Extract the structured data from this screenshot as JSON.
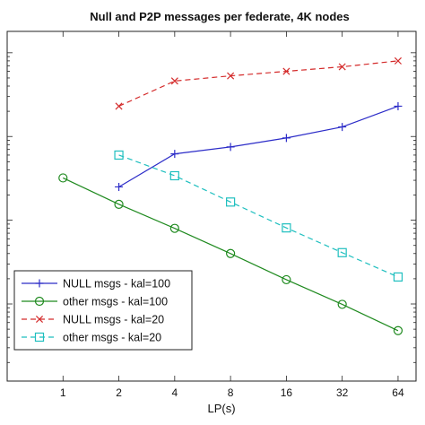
{
  "chart_data": {
    "type": "line",
    "title": "Null and P2P messages per federate, 4K nodes",
    "xlabel": "LP(s)",
    "ylabel": "",
    "x_scale": "log2",
    "y_scale": "log",
    "x": [
      1,
      2,
      4,
      8,
      16,
      32,
      64
    ],
    "x_tick_labels": [
      "1",
      "2",
      "4",
      "8",
      "16",
      "32",
      "64"
    ],
    "xlim": [
      0.5,
      80
    ],
    "ylim": [
      120,
      1800000
    ],
    "grid": false,
    "legend_position": "bottom-left",
    "series": [
      {
        "name": "NULL msgs - kal=100",
        "color": "#2c2cc8",
        "line_style": "solid",
        "marker": "plus",
        "points": [
          [
            2,
            25000
          ],
          [
            4,
            62000
          ],
          [
            8,
            75000
          ],
          [
            16,
            96000
          ],
          [
            32,
            130000
          ],
          [
            64,
            230000
          ]
        ]
      },
      {
        "name": "other msgs - kal=100",
        "color": "#1f8a1f",
        "line_style": "solid",
        "marker": "circle",
        "points": [
          [
            1,
            32000
          ],
          [
            2,
            15500
          ],
          [
            4,
            8000
          ],
          [
            8,
            4000
          ],
          [
            16,
            1950
          ],
          [
            32,
            990
          ],
          [
            64,
            480
          ]
        ]
      },
      {
        "name": "NULL msgs - kal=20",
        "color": "#d42a2a",
        "line_style": "dashed",
        "marker": "x",
        "points": [
          [
            2,
            230000
          ],
          [
            4,
            460000
          ],
          [
            8,
            530000
          ],
          [
            16,
            600000
          ],
          [
            32,
            680000
          ],
          [
            64,
            800000
          ]
        ]
      },
      {
        "name": "other msgs - kal=20",
        "color": "#1fbfbf",
        "line_style": "dashed",
        "marker": "square",
        "points": [
          [
            2,
            60000
          ],
          [
            4,
            34000
          ],
          [
            8,
            16500
          ],
          [
            16,
            8100
          ],
          [
            32,
            4100
          ],
          [
            64,
            2100
          ]
        ]
      }
    ]
  }
}
